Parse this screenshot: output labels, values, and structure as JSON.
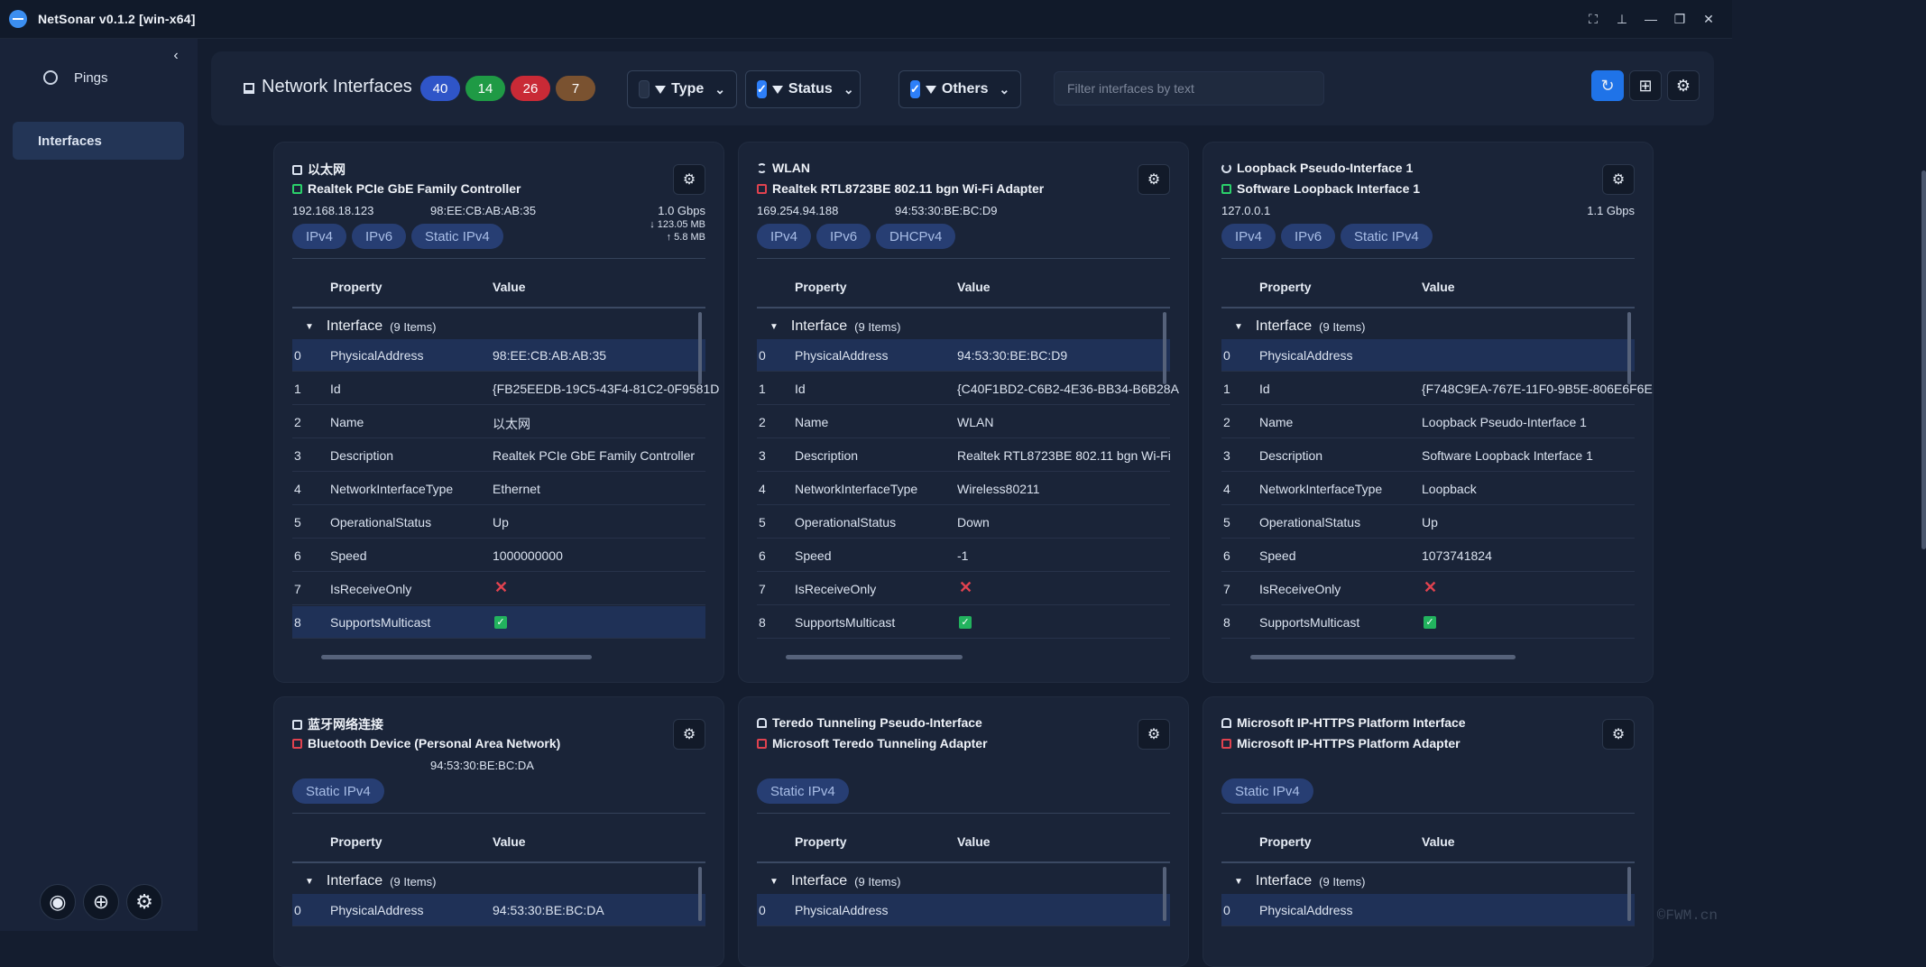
{
  "app": {
    "title": "NetSonar v0.1.2   [win-x64]"
  },
  "sidebar": {
    "items": [
      {
        "label": "Pings",
        "icon": "ping-icon"
      },
      {
        "label": "Interfaces",
        "icon": "none"
      }
    ]
  },
  "toolbar": {
    "title": "Network Interfaces",
    "counts": [
      {
        "value": "40",
        "color": "#2f55c8"
      },
      {
        "value": "14",
        "color": "#1f9a45"
      },
      {
        "value": "26",
        "color": "#c92a36"
      },
      {
        "value": "7",
        "color": "#7a5230"
      }
    ],
    "filters": [
      {
        "label": "Type",
        "checked": false
      },
      {
        "label": "Status",
        "checked": true
      },
      {
        "label": "Others",
        "checked": true
      }
    ],
    "search_placeholder": "Filter interfaces by text"
  },
  "columns": {
    "property": "Property",
    "value": "Value"
  },
  "group": {
    "label": "Interface",
    "count": "(9 Items)"
  },
  "cards": [
    {
      "name": "以太网",
      "description": "Realtek PCIe GbE Family Controller",
      "up": true,
      "icon": "monitor",
      "ip": "192.168.18.123",
      "mac": "98:EE:CB:AB:AB:35",
      "speed": "1.0 Gbps",
      "rx": "123.05 MB",
      "tx": "5.8 MB",
      "chips": [
        "IPv4",
        "IPv6",
        "Static IPv4"
      ],
      "rows": [
        [
          "0",
          "PhysicalAddress",
          "98:EE:CB:AB:AB:35"
        ],
        [
          "1",
          "Id",
          "{FB25EEDB-19C5-43F4-81C2-0F9581D"
        ],
        [
          "2",
          "Name",
          "以太网"
        ],
        [
          "3",
          "Description",
          "Realtek PCIe GbE Family Controller"
        ],
        [
          "4",
          "NetworkInterfaceType",
          "Ethernet"
        ],
        [
          "5",
          "OperationalStatus",
          "Up"
        ],
        [
          "6",
          "Speed",
          "1000000000"
        ],
        [
          "7",
          "IsReceiveOnly",
          "false"
        ],
        [
          "8",
          "SupportsMulticast",
          "true"
        ]
      ]
    },
    {
      "name": "WLAN",
      "description": "Realtek RTL8723BE 802.11 bgn Wi-Fi Adapter",
      "up": false,
      "icon": "wifi",
      "ip": "169.254.94.188",
      "mac": "94:53:30:BE:BC:D9",
      "speed": "",
      "rx": "",
      "tx": "",
      "chips": [
        "IPv4",
        "IPv6",
        "DHCPv4"
      ],
      "rows": [
        [
          "0",
          "PhysicalAddress",
          "94:53:30:BE:BC:D9"
        ],
        [
          "1",
          "Id",
          "{C40F1BD2-C6B2-4E36-BB34-B6B28A"
        ],
        [
          "2",
          "Name",
          "WLAN"
        ],
        [
          "3",
          "Description",
          "Realtek RTL8723BE 802.11 bgn Wi-Fi"
        ],
        [
          "4",
          "NetworkInterfaceType",
          "Wireless80211"
        ],
        [
          "5",
          "OperationalStatus",
          "Down"
        ],
        [
          "6",
          "Speed",
          "-1"
        ],
        [
          "7",
          "IsReceiveOnly",
          "false"
        ],
        [
          "8",
          "SupportsMulticast",
          "true"
        ]
      ]
    },
    {
      "name": "Loopback Pseudo-Interface 1",
      "description": "Software Loopback Interface 1",
      "up": true,
      "icon": "loop",
      "ip": "127.0.0.1",
      "mac": "",
      "speed": "1.1 Gbps",
      "rx": "",
      "tx": "",
      "chips": [
        "IPv4",
        "IPv6",
        "Static IPv4"
      ],
      "rows": [
        [
          "0",
          "PhysicalAddress",
          ""
        ],
        [
          "1",
          "Id",
          "{F748C9EA-767E-11F0-9B5E-806E6F6E"
        ],
        [
          "2",
          "Name",
          "Loopback Pseudo-Interface 1"
        ],
        [
          "3",
          "Description",
          "Software Loopback Interface 1"
        ],
        [
          "4",
          "NetworkInterfaceType",
          "Loopback"
        ],
        [
          "5",
          "OperationalStatus",
          "Up"
        ],
        [
          "6",
          "Speed",
          "1073741824"
        ],
        [
          "7",
          "IsReceiveOnly",
          "false"
        ],
        [
          "8",
          "SupportsMulticast",
          "true"
        ]
      ]
    },
    {
      "name": "蓝牙网络连接",
      "description": "Bluetooth Device (Personal Area Network)",
      "up": false,
      "icon": "monitor",
      "ip": "",
      "mac": "94:53:30:BE:BC:DA",
      "speed": "",
      "rx": "",
      "tx": "",
      "chips": [
        "Static IPv4"
      ],
      "rows": [
        [
          "0",
          "PhysicalAddress",
          "94:53:30:BE:BC:DA"
        ]
      ]
    },
    {
      "name": "Teredo Tunneling Pseudo-Interface",
      "description": "Microsoft Teredo Tunneling Adapter",
      "up": false,
      "icon": "lock",
      "ip": "",
      "mac": "",
      "speed": "",
      "rx": "",
      "tx": "",
      "chips": [
        "Static IPv4"
      ],
      "rows": [
        [
          "0",
          "PhysicalAddress",
          ""
        ]
      ]
    },
    {
      "name": "Microsoft IP-HTTPS Platform Interface",
      "description": "Microsoft IP-HTTPS Platform Adapter",
      "up": false,
      "icon": "lock",
      "ip": "",
      "mac": "",
      "speed": "",
      "rx": "",
      "tx": "",
      "chips": [
        "Static IPv4"
      ],
      "rows": [
        [
          "0",
          "PhysicalAddress",
          ""
        ]
      ]
    }
  ],
  "watermark": "©FWM.cn"
}
